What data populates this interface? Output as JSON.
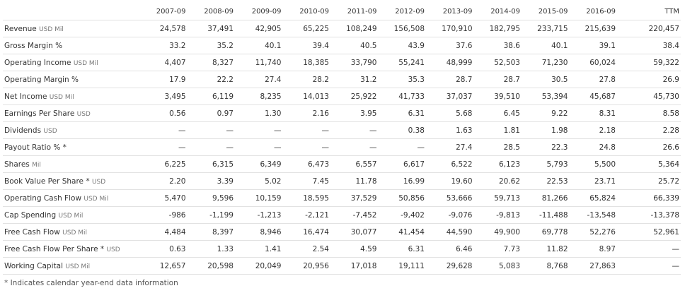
{
  "table": {
    "columns": [
      "2007-09",
      "2008-09",
      "2009-09",
      "2010-09",
      "2011-09",
      "2012-09",
      "2013-09",
      "2014-09",
      "2015-09",
      "2016-09",
      "TTM"
    ],
    "rows": [
      {
        "label": "Revenue",
        "unit": "USD Mil",
        "values": [
          "24,578",
          "37,491",
          "42,905",
          "65,225",
          "108,249",
          "156,508",
          "170,910",
          "182,795",
          "233,715",
          "215,639",
          "220,457"
        ]
      },
      {
        "label": "Gross Margin %",
        "values": [
          "33.2",
          "35.2",
          "40.1",
          "39.4",
          "40.5",
          "43.9",
          "37.6",
          "38.6",
          "40.1",
          "39.1",
          "38.4"
        ]
      },
      {
        "label": "Operating Income",
        "unit": "USD Mil",
        "values": [
          "4,407",
          "8,327",
          "11,740",
          "18,385",
          "33,790",
          "55,241",
          "48,999",
          "52,503",
          "71,230",
          "60,024",
          "59,322"
        ]
      },
      {
        "label": "Operating Margin %",
        "values": [
          "17.9",
          "22.2",
          "27.4",
          "28.2",
          "31.2",
          "35.3",
          "28.7",
          "28.7",
          "30.5",
          "27.8",
          "26.9"
        ]
      },
      {
        "label": "Net Income",
        "unit": "USD Mil",
        "values": [
          "3,495",
          "6,119",
          "8,235",
          "14,013",
          "25,922",
          "41,733",
          "37,037",
          "39,510",
          "53,394",
          "45,687",
          "45,730"
        ]
      },
      {
        "label": "Earnings Per Share",
        "unit": "USD",
        "values": [
          "0.56",
          "0.97",
          "1.30",
          "2.16",
          "3.95",
          "6.31",
          "5.68",
          "6.45",
          "9.22",
          "8.31",
          "8.58"
        ]
      },
      {
        "label": "Dividends",
        "unit": "USD",
        "values": [
          "—",
          "—",
          "—",
          "—",
          "—",
          "0.38",
          "1.63",
          "1.81",
          "1.98",
          "2.18",
          "2.28"
        ]
      },
      {
        "label": "Payout Ratio % *",
        "values": [
          "—",
          "—",
          "—",
          "—",
          "—",
          "—",
          "27.4",
          "28.5",
          "22.3",
          "24.8",
          "26.6"
        ]
      },
      {
        "label": "Shares",
        "unit": "Mil",
        "values": [
          "6,225",
          "6,315",
          "6,349",
          "6,473",
          "6,557",
          "6,617",
          "6,522",
          "6,123",
          "5,793",
          "5,500",
          "5,364"
        ]
      },
      {
        "label": "Book Value Per Share *",
        "unit": "USD",
        "values": [
          "2.20",
          "3.39",
          "5.02",
          "7.45",
          "11.78",
          "16.99",
          "19.60",
          "20.62",
          "22.53",
          "23.71",
          "25.72"
        ]
      },
      {
        "label": "Operating Cash Flow",
        "unit": "USD Mil",
        "values": [
          "5,470",
          "9,596",
          "10,159",
          "18,595",
          "37,529",
          "50,856",
          "53,666",
          "59,713",
          "81,266",
          "65,824",
          "66,339"
        ]
      },
      {
        "label": "Cap Spending",
        "unit": "USD Mil",
        "values": [
          "-986",
          "-1,199",
          "-1,213",
          "-2,121",
          "-7,452",
          "-9,402",
          "-9,076",
          "-9,813",
          "-11,488",
          "-13,548",
          "-13,378"
        ]
      },
      {
        "label": "Free Cash Flow",
        "unit": "USD Mil",
        "values": [
          "4,484",
          "8,397",
          "8,946",
          "16,474",
          "30,077",
          "41,454",
          "44,590",
          "49,900",
          "69,778",
          "52,276",
          "52,961"
        ]
      },
      {
        "label": "Free Cash Flow Per Share *",
        "unit": "USD",
        "values": [
          "0.63",
          "1.33",
          "1.41",
          "2.54",
          "4.59",
          "6.31",
          "6.46",
          "7.73",
          "11.82",
          "8.97",
          "—"
        ]
      },
      {
        "label": "Working Capital",
        "unit": "USD Mil",
        "values": [
          "12,657",
          "20,598",
          "20,049",
          "20,956",
          "17,018",
          "19,111",
          "29,628",
          "5,083",
          "8,768",
          "27,863",
          "—"
        ]
      }
    ]
  },
  "footnote": "* Indicates calendar year-end data information"
}
